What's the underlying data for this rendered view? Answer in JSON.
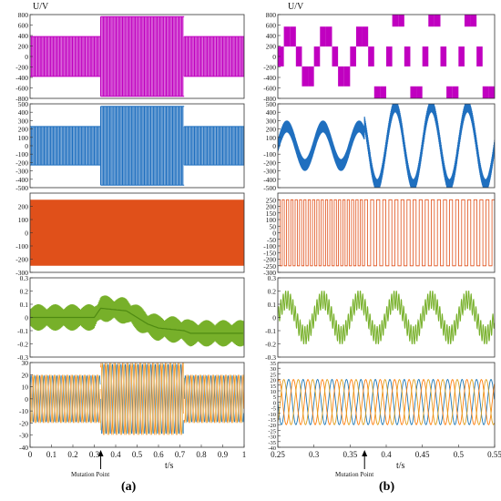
{
  "figure": {
    "y_unit_label": "U/V",
    "x_unit_label": "t/s",
    "mutation_label": "Mutation Point",
    "captions": [
      "(a)",
      "(b)"
    ]
  },
  "colors": {
    "magenta": "#c000c0",
    "blue": "#1f6fbf",
    "orange": "#e0501a",
    "green": "#77b02a",
    "phase_a": "#1f77b4",
    "phase_b": "#ff7f0e",
    "phase_c": "#e0a020",
    "axis": "#333333",
    "arrow": "#000000"
  },
  "chart_data": [
    {
      "type": "line",
      "column": "a",
      "row": 1,
      "color": "magenta",
      "ylim": [
        -800,
        800
      ],
      "yticks": [
        "800",
        "600",
        "400",
        "200",
        "0",
        "-200",
        "-400",
        "-600",
        "-800"
      ],
      "xlim": [
        0,
        1
      ],
      "x_tick_labels_shown": false,
      "series": [
        {
          "segments": [
            {
              "x_start": 0,
              "x_end": 0.33,
              "high": 380,
              "low": -380
            },
            {
              "x_start": 0.33,
              "x_end": 0.72,
              "high": 760,
              "low": -760
            },
            {
              "x_start": 0.72,
              "x_end": 1.0,
              "high": 380,
              "low": -380
            }
          ]
        }
      ]
    },
    {
      "type": "line",
      "column": "a",
      "row": 2,
      "color": "blue",
      "ylim": [
        -500,
        500
      ],
      "yticks": [
        "500",
        "400",
        "300",
        "200",
        "100",
        "0",
        "-100",
        "-200",
        "-300",
        "-400",
        "-500"
      ],
      "xlim": [
        0,
        1
      ],
      "x_tick_labels_shown": false,
      "series": [
        {
          "segments": [
            {
              "x_start": 0,
              "x_end": 0.33,
              "high": 230,
              "low": -230
            },
            {
              "x_start": 0.33,
              "x_end": 0.72,
              "high": 470,
              "low": -470
            },
            {
              "x_start": 0.72,
              "x_end": 1.0,
              "high": 230,
              "low": -230
            }
          ]
        }
      ]
    },
    {
      "type": "line",
      "column": "a",
      "row": 3,
      "color": "orange",
      "ylim": [
        -300,
        300
      ],
      "yticks": [
        "200",
        "100",
        "0",
        "-100",
        "-200",
        "-300"
      ],
      "xlim": [
        0,
        1
      ],
      "x_tick_labels_shown": false,
      "series": [
        {
          "segments": [
            {
              "x_start": 0,
              "x_end": 1.0,
              "high": 250,
              "low": -250
            }
          ]
        }
      ]
    },
    {
      "type": "line",
      "column": "a",
      "row": 4,
      "color": "green",
      "ylim": [
        -0.3,
        0.3
      ],
      "yticks": [
        "0.3",
        "0.2",
        "0.1",
        "0",
        "-0.1",
        "-0.2",
        "-0.3"
      ],
      "xlim": [
        0,
        1
      ],
      "x_tick_labels_shown": false,
      "series": [
        {
          "center_points": [
            [
              0,
              0.0
            ],
            [
              0.3,
              0.0
            ],
            [
              0.33,
              0.07
            ],
            [
              0.45,
              0.05
            ],
            [
              0.5,
              0.0
            ],
            [
              0.55,
              -0.05
            ],
            [
              0.6,
              -0.08
            ],
            [
              0.72,
              -0.1
            ],
            [
              0.75,
              -0.12
            ],
            [
              1.0,
              -0.12
            ]
          ],
          "band": 0.1
        }
      ]
    },
    {
      "type": "line",
      "column": "a",
      "row": 5,
      "ylim": [
        -40,
        30
      ],
      "yticks": [
        "30",
        "20",
        "10",
        "0",
        "-10",
        "-20",
        "-30",
        "-40"
      ],
      "xlim": [
        0,
        1
      ],
      "xticks": [
        "0",
        "0.1",
        "0.2",
        "0.3",
        "0.4",
        "0.5",
        "0.6",
        "0.7",
        "0.8",
        "0.9",
        "1"
      ],
      "xtick_values": [
        0,
        0.1,
        0.2,
        0.3,
        0.4,
        0.5,
        0.6,
        0.7,
        0.8,
        0.9,
        1
      ],
      "mutation_x": 0.33,
      "series": [
        {
          "phases": 3,
          "segments": [
            {
              "x_start": 0,
              "x_end": 0.33,
              "amp": 20
            },
            {
              "x_start": 0.33,
              "x_end": 0.72,
              "amp": 30
            },
            {
              "x_start": 0.72,
              "x_end": 1.0,
              "amp": 20
            }
          ]
        }
      ]
    },
    {
      "type": "line",
      "column": "b",
      "row": 1,
      "color": "magenta",
      "ylim": [
        -800,
        800
      ],
      "yticks": [
        "800",
        "600",
        "400",
        "200",
        "0",
        "-200",
        "-400",
        "-600",
        "-800"
      ],
      "xlim": [
        0.25,
        0.55
      ],
      "x_tick_labels_shown": false,
      "series": [
        {
          "levels_before": [
            -380,
            0,
            380
          ],
          "levels_after": [
            -760,
            -380,
            0,
            380,
            760
          ],
          "mutation_x": 0.37,
          "period": 0.05
        }
      ]
    },
    {
      "type": "line",
      "column": "b",
      "row": 2,
      "color": "blue",
      "ylim": [
        -500,
        500
      ],
      "yticks": [
        "500",
        "400",
        "300",
        "200",
        "100",
        "0",
        "-100",
        "-200",
        "-300",
        "-400",
        "-500"
      ],
      "xlim": [
        0.25,
        0.55
      ],
      "x_tick_labels_shown": false,
      "series": [
        {
          "amp_before": 230,
          "amp_after": 470,
          "mutation_x": 0.37,
          "period": 0.05
        }
      ]
    },
    {
      "type": "line",
      "column": "b",
      "row": 3,
      "color": "orange",
      "ylim": [
        -300,
        300
      ],
      "yticks": [
        "250",
        "200",
        "150",
        "100",
        "50",
        "0",
        "-50",
        "-100",
        "-150",
        "-200",
        "-250",
        "-300"
      ],
      "xlim": [
        0.25,
        0.55
      ],
      "x_tick_labels_shown": false,
      "series": [
        {
          "high": 250,
          "low": -250,
          "mutation_x": 0.37
        }
      ]
    },
    {
      "type": "line",
      "column": "b",
      "row": 4,
      "color": "green",
      "ylim": [
        -0.3,
        0.3
      ],
      "yticks": [
        "0.3",
        "0.2",
        "0.1",
        "0",
        "-0.1",
        "-0.2",
        "-0.3"
      ],
      "xlim": [
        0.25,
        0.55
      ],
      "x_tick_labels_shown": false,
      "series": [
        {
          "amp": 0.15,
          "mutation_x": 0.37,
          "period": 0.05
        }
      ]
    },
    {
      "type": "line",
      "column": "b",
      "row": 5,
      "ylim": [
        -40,
        35
      ],
      "yticks": [
        "35",
        "30",
        "25",
        "20",
        "15",
        "10",
        "5",
        "0",
        "-5",
        "-10",
        "-15",
        "-20",
        "-25",
        "-30",
        "-35",
        "-40"
      ],
      "xlim": [
        0.25,
        0.55
      ],
      "xticks": [
        "0.25",
        "0.3",
        "0.35",
        "0.4",
        "0.45",
        "0.5",
        "0.55"
      ],
      "xtick_values": [
        0.25,
        0.3,
        0.35,
        0.4,
        0.45,
        0.5,
        0.55
      ],
      "mutation_x": 0.37,
      "series": [
        {
          "phases": 3,
          "amp_before": 20,
          "amp_after": 30,
          "period": 0.02
        }
      ]
    }
  ]
}
